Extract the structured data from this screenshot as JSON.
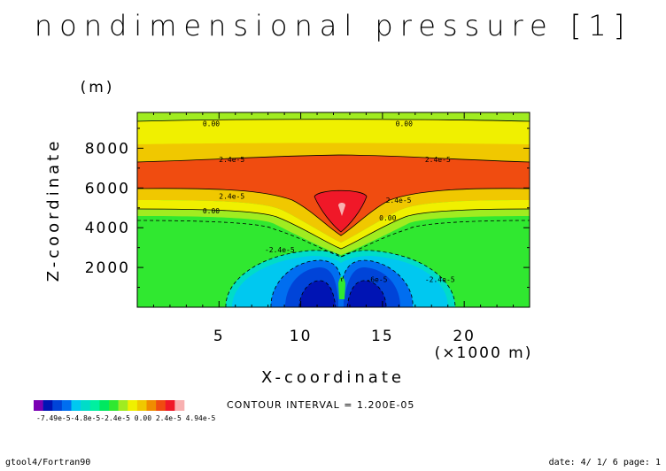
{
  "chart_data": {
    "type": "contour",
    "title": "nondimensional pressure [1]",
    "xlabel": "X-coordinate",
    "x_unit": "(×1000 m)",
    "ylabel": "Z-coordinate",
    "y_unit": "(m)",
    "xlim": [
      0,
      24
    ],
    "ylim": [
      0,
      9800
    ],
    "x_ticks": [
      5,
      10,
      15,
      20
    ],
    "x_tick_labels": [
      "5",
      "10",
      "15",
      "20"
    ],
    "y_ticks": [
      2000,
      4000,
      6000,
      8000
    ],
    "y_tick_labels": [
      "2000",
      "4000",
      "6000",
      "8000"
    ],
    "contour_interval_text": "CONTOUR INTERVAL = 1.200E-05",
    "contour_interval": 1.2e-05,
    "contour_labels": [
      {
        "text": "0.00",
        "x": 4.0,
        "y": 9250
      },
      {
        "text": "0.00",
        "x": 15.8,
        "y": 9250
      },
      {
        "text": "2.4e-5",
        "x": 5.0,
        "y": 7450
      },
      {
        "text": "2.4e-5",
        "x": 17.6,
        "y": 7450
      },
      {
        "text": "2.4e-5",
        "x": 5.0,
        "y": 5600
      },
      {
        "text": "2.4e-5",
        "x": 15.2,
        "y": 5400
      },
      {
        "text": "0.00",
        "x": 4.0,
        "y": 4850
      },
      {
        "text": "0.00",
        "x": 14.8,
        "y": 4500
      },
      {
        "text": "-2.4e-5",
        "x": 7.8,
        "y": 2900
      },
      {
        "text": "-2.4e-5",
        "x": 17.6,
        "y": 1400
      },
      {
        "text": "-6e-5",
        "x": 14.0,
        "y": 1400
      }
    ],
    "colorbar": {
      "min_label": "-7.49e-5",
      "max_label": "4.94e-5",
      "tick_labels_overlapping": [
        "-4.8e-5",
        "-2.4e-5",
        "0.00",
        "2.4e-5"
      ],
      "colors": [
        "#7a00b4",
        "#0014b4",
        "#0044d8",
        "#006ef0",
        "#00c8f0",
        "#00dcc8",
        "#00f0a0",
        "#00e860",
        "#30e830",
        "#a0ec20",
        "#f0f000",
        "#f0c800",
        "#f08c00",
        "#f04c10",
        "#f01828",
        "#f8b0b0"
      ]
    },
    "levels": [
      {
        "name": "band_yellow",
        "color": "#f0f000"
      },
      {
        "name": "band_orange",
        "color": "#f0c800"
      },
      {
        "name": "band_red_orange",
        "color": "#f04c10"
      },
      {
        "name": "band_red",
        "color": "#f01828"
      },
      {
        "name": "band_pink",
        "color": "#f8b0b0"
      },
      {
        "name": "band_green",
        "color": "#30e830"
      },
      {
        "name": "band_light_green",
        "color": "#a0ec20"
      },
      {
        "name": "band_cyan_green",
        "color": "#00dcc8"
      },
      {
        "name": "band_cyan",
        "color": "#00c8f0"
      },
      {
        "name": "band_blue",
        "color": "#006ef0"
      },
      {
        "name": "band_dark_blue",
        "color": "#0014b4"
      }
    ]
  },
  "footer": {
    "left": "gtool4/Fortran90",
    "right": "date: 4/ 1/ 6 page: 1"
  },
  "colorbar_label_text": "-7.49e-5-4.8e-5-2.4e-5  0.00  2.4e-5 4.94e-5"
}
